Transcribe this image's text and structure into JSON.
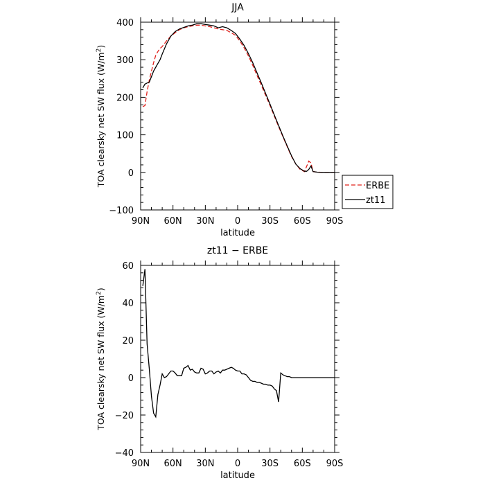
{
  "chart_data": [
    {
      "type": "line",
      "title": "JJA",
      "xlabel": "latitude",
      "ylabel_main": "TOA clearsky net SW flux (W/m",
      "ylabel_sup": "2",
      "ylabel_close": ")",
      "xlim": [
        -90,
        90
      ],
      "ylim": [
        -100,
        400
      ],
      "x_ticks": [
        {
          "value": -90,
          "label": "90N"
        },
        {
          "value": -60,
          "label": "60N"
        },
        {
          "value": -30,
          "label": "30N"
        },
        {
          "value": 0,
          "label": "0"
        },
        {
          "value": 30,
          "label": "30S"
        },
        {
          "value": 60,
          "label": "60S"
        },
        {
          "value": 90,
          "label": "90S"
        }
      ],
      "y_ticks": [
        {
          "value": -100,
          "label": "−100"
        },
        {
          "value": 0,
          "label": "0"
        },
        {
          "value": 100,
          "label": "100"
        },
        {
          "value": 200,
          "label": "200"
        },
        {
          "value": 300,
          "label": "300"
        },
        {
          "value": 400,
          "label": "400"
        }
      ],
      "legend": {
        "placement": "right-outside"
      },
      "series": [
        {
          "name": "ERBE",
          "color": "#e0201b",
          "dash": "dashed",
          "x": [
            -88,
            -86,
            -84,
            -82,
            -80,
            -78,
            -76,
            -74,
            -72,
            -70,
            -66,
            -62,
            -58,
            -54,
            -50,
            -46,
            -42,
            -38,
            -34,
            -30,
            -26,
            -22,
            -18,
            -14,
            -10,
            -6,
            -2,
            2,
            6,
            10,
            14,
            18,
            22,
            26,
            30,
            34,
            38,
            42,
            46,
            50,
            54,
            58,
            62,
            66,
            68,
            70,
            74,
            80,
            85,
            90
          ],
          "y": [
            175,
            178,
            215,
            245,
            270,
            292,
            312,
            322,
            330,
            335,
            350,
            363,
            372,
            380,
            385,
            388,
            390,
            392,
            392,
            390,
            388,
            385,
            382,
            380,
            378,
            372,
            365,
            350,
            332,
            310,
            285,
            258,
            232,
            205,
            178,
            150,
            122,
            95,
            68,
            42,
            22,
            8,
            2,
            30,
            25,
            2,
            0.5,
            0,
            0,
            0
          ]
        },
        {
          "name": "zt11",
          "color": "#000000",
          "dash": "solid",
          "x": [
            -88,
            -86,
            -84,
            -82,
            -80,
            -78,
            -76,
            -74,
            -72,
            -70,
            -66,
            -62,
            -58,
            -54,
            -50,
            -46,
            -42,
            -38,
            -34,
            -30,
            -26,
            -22,
            -18,
            -14,
            -10,
            -6,
            -2,
            2,
            6,
            10,
            14,
            18,
            22,
            26,
            30,
            34,
            38,
            42,
            46,
            50,
            54,
            58,
            62,
            64,
            66,
            68,
            70,
            74,
            80,
            85,
            90
          ],
          "y": [
            225,
            235,
            238,
            240,
            255,
            270,
            280,
            290,
            300,
            315,
            342,
            363,
            375,
            382,
            386,
            390,
            392,
            396,
            396,
            394,
            392,
            390,
            385,
            388,
            385,
            378,
            370,
            355,
            338,
            316,
            292,
            265,
            238,
            210,
            182,
            153,
            125,
            97,
            70,
            44,
            22,
            10,
            3,
            3,
            8,
            17,
            2,
            0.5,
            0,
            0,
            0
          ]
        }
      ]
    },
    {
      "type": "line",
      "title": "zt11 − ERBE",
      "xlabel": "latitude",
      "ylabel_main": "TOA clearsky net SW flux (W/m",
      "ylabel_sup": "2",
      "ylabel_close": ")",
      "xlim": [
        -90,
        90
      ],
      "ylim": [
        -40,
        60
      ],
      "x_ticks": [
        {
          "value": -90,
          "label": "90N"
        },
        {
          "value": -60,
          "label": "60N"
        },
        {
          "value": -30,
          "label": "30N"
        },
        {
          "value": 0,
          "label": "0"
        },
        {
          "value": 30,
          "label": "30S"
        },
        {
          "value": 60,
          "label": "60S"
        },
        {
          "value": 90,
          "label": "90S"
        }
      ],
      "y_ticks": [
        {
          "value": -40,
          "label": "−40"
        },
        {
          "value": -20,
          "label": "−20"
        },
        {
          "value": 0,
          "label": "0"
        },
        {
          "value": 20,
          "label": "20"
        },
        {
          "value": 40,
          "label": "40"
        },
        {
          "value": 60,
          "label": "60"
        }
      ],
      "series": [
        {
          "color": "#000000",
          "dash": "solid",
          "x": [
            -88,
            -86,
            -84,
            -82,
            -80,
            -78,
            -76,
            -74,
            -72,
            -70,
            -68,
            -66,
            -64,
            -62,
            -60,
            -58,
            -56,
            -54,
            -52,
            -50,
            -48,
            -46,
            -44,
            -42,
            -40,
            -38,
            -36,
            -34,
            -32,
            -30,
            -28,
            -26,
            -24,
            -22,
            -20,
            -18,
            -16,
            -14,
            -12,
            -10,
            -8,
            -6,
            -4,
            -2,
            0,
            2,
            4,
            6,
            8,
            10,
            12,
            14,
            16,
            18,
            20,
            22,
            24,
            26,
            28,
            30,
            32,
            34,
            36,
            38,
            40,
            42,
            44,
            46,
            48,
            50,
            52,
            54,
            56,
            58,
            60,
            62,
            64,
            66,
            68,
            70,
            72,
            74,
            76,
            78,
            80,
            82,
            84,
            86,
            88,
            90
          ],
          "y": [
            49,
            58,
            18,
            5,
            -10,
            -19,
            -21,
            -9,
            -4,
            2,
            0,
            0.5,
            2,
            3.5,
            3.5,
            2.5,
            1,
            1,
            1,
            5,
            5.5,
            6.5,
            4,
            4.5,
            3,
            2.5,
            2.5,
            5,
            4.5,
            2,
            2.5,
            3.5,
            3.5,
            2,
            3,
            3.5,
            2.5,
            4,
            4,
            4.5,
            5,
            5.5,
            5,
            4,
            3.5,
            3.5,
            2,
            2,
            1.5,
            0,
            -1.5,
            -2,
            -2,
            -2.5,
            -2.5,
            -3,
            -3.5,
            -3.5,
            -4,
            -4,
            -4.5,
            -6,
            -7,
            -13,
            2.5,
            1.5,
            1,
            0.5,
            0.5,
            0,
            0,
            0,
            0,
            0,
            0,
            0,
            0,
            0,
            0,
            0,
            0,
            0,
            0,
            0,
            0,
            0,
            0,
            0,
            0,
            0
          ]
        }
      ]
    }
  ]
}
